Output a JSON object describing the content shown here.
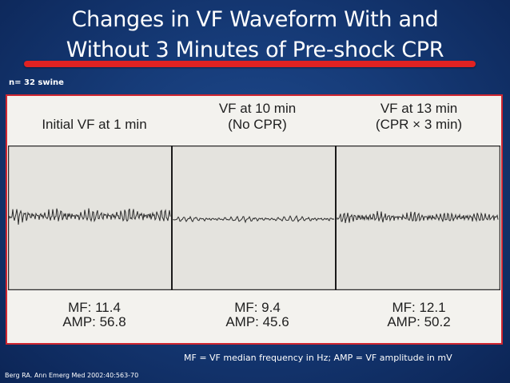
{
  "title": {
    "line1": "Changes in VF Waveform With and",
    "line2": "Without 3 Minutes of Pre-shock CPR"
  },
  "sample_size": "n= 32 swine",
  "panels": [
    {
      "heading_line1": "",
      "heading_line2": "Initial VF at 1 min",
      "mf": "MF: 11.4",
      "amp": "AMP: 56.8"
    },
    {
      "heading_line1": "VF at 10 min",
      "heading_line2": "(No CPR)",
      "mf": "MF: 9.4",
      "amp": "AMP: 45.6"
    },
    {
      "heading_line1": "VF at 13 min",
      "heading_line2": "(CPR × 3 min)",
      "mf": "MF: 12.1",
      "amp": "AMP: 50.2"
    }
  ],
  "legend": "MF = VF median frequency in Hz; AMP = VF amplitude in mV",
  "citation": "Berg RA.  Ann Emerg Med 2002:40:563-70",
  "colors": {
    "background": "#163b78",
    "accent_bar": "#e02222",
    "panel_border": "#cf2630"
  }
}
